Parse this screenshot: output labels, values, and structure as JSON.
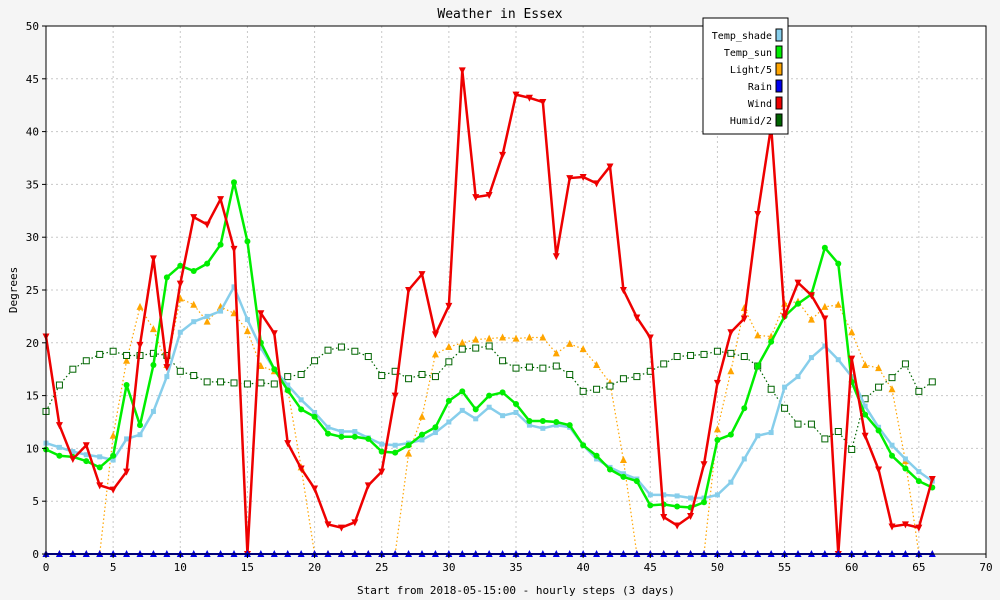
{
  "chart_data": {
    "type": "line",
    "title": "Weather in Essex",
    "xlabel": "Start from 2018-05-15:00 - hourly steps (3 days)",
    "ylabel": "Degrees",
    "xlim": [
      0,
      70
    ],
    "ylim": [
      0,
      50
    ],
    "xticks": [
      0,
      5,
      10,
      15,
      20,
      25,
      30,
      35,
      40,
      45,
      50,
      55,
      60,
      65,
      70
    ],
    "yticks": [
      0,
      5,
      10,
      15,
      20,
      25,
      30,
      35,
      40,
      45,
      50
    ],
    "grid": true,
    "legend_position": "top-right",
    "series": [
      {
        "name": "Temp_shade",
        "color": "#87ceeb",
        "marker": "square",
        "line": "solid",
        "values": [
          10.5,
          10.1,
          9.7,
          9.4,
          9.2,
          8.9,
          10.9,
          11.3,
          13.5,
          16.8,
          21.0,
          22.0,
          22.5,
          23.0,
          25.3,
          22.2,
          19.5,
          17.5,
          16.0,
          14.6,
          13.4,
          12.0,
          11.6,
          11.6,
          11.0,
          10.4,
          10.3,
          10.5,
          10.8,
          11.5,
          12.5,
          13.6,
          12.8,
          13.9,
          13.1,
          13.4,
          12.2,
          11.9,
          12.2,
          12.0,
          10.3,
          9.0,
          8.2,
          7.6,
          7.1,
          5.6,
          5.6,
          5.5,
          5.3,
          5.3,
          5.6,
          6.8,
          9.0,
          11.2,
          11.5,
          15.8,
          16.8,
          18.6,
          19.7,
          18.4,
          16.8,
          14.0,
          12.0,
          10.3,
          9.0,
          7.8,
          6.9
        ]
      },
      {
        "name": "Temp_sun",
        "color": "#00ee00",
        "marker": "circle",
        "line": "solid",
        "values": [
          9.9,
          9.3,
          9.2,
          8.8,
          8.2,
          9.3,
          16.0,
          12.2,
          17.9,
          26.2,
          27.3,
          26.8,
          27.5,
          29.3,
          35.2,
          29.6,
          20.0,
          17.5,
          15.5,
          13.7,
          13.0,
          11.4,
          11.1,
          11.1,
          10.9,
          9.7,
          9.6,
          10.3,
          11.3,
          12.0,
          14.5,
          15.4,
          13.7,
          15.0,
          15.3,
          14.2,
          12.6,
          12.6,
          12.5,
          12.2,
          10.3,
          9.3,
          8.0,
          7.3,
          6.9,
          4.6,
          4.7,
          4.5,
          4.4,
          4.9,
          10.8,
          11.3,
          13.8,
          17.8,
          20.1,
          22.5,
          23.7,
          24.6,
          29.0,
          27.5,
          16.3,
          13.2,
          11.7,
          9.3,
          8.1,
          6.9,
          6.3
        ]
      },
      {
        "name": "Light/5",
        "color": "#ffa500",
        "marker": "triangle-up",
        "line": "dotted",
        "values": [
          0,
          0,
          0,
          0,
          0,
          11.2,
          18.3,
          23.4,
          21.3,
          17.9,
          24.2,
          23.6,
          22.0,
          23.4,
          22.8,
          21.1,
          17.8,
          17.3,
          15.6,
          8.2,
          0,
          0,
          0,
          0,
          0,
          0,
          0,
          9.5,
          13.0,
          18.9,
          19.6,
          20.0,
          20.3,
          20.4,
          20.5,
          20.4,
          20.5,
          20.5,
          19.0,
          19.9,
          19.4,
          17.9,
          16.2,
          8.9,
          0,
          0,
          0,
          0,
          0,
          0,
          11.8,
          17.3,
          23.3,
          20.7,
          20.6,
          23.7,
          23.9,
          22.2,
          23.4,
          23.6,
          21.0,
          17.9,
          17.6,
          15.6,
          8.8,
          0,
          0
        ]
      },
      {
        "name": "Rain",
        "color": "#0000ee",
        "marker": "triangle-up",
        "line": "solid",
        "values": [
          0,
          0,
          0,
          0,
          0,
          0,
          0,
          0,
          0,
          0,
          0,
          0,
          0,
          0,
          0,
          0,
          0,
          0,
          0,
          0,
          0,
          0,
          0,
          0,
          0,
          0,
          0,
          0,
          0,
          0,
          0,
          0,
          0,
          0,
          0,
          0,
          0,
          0,
          0,
          0,
          0,
          0,
          0,
          0,
          0,
          0,
          0,
          0,
          0,
          0,
          0,
          0,
          0,
          0,
          0,
          0,
          0,
          0,
          0,
          0,
          0,
          0,
          0,
          0,
          0,
          0,
          0
        ]
      },
      {
        "name": "Wind",
        "color": "#ee0000",
        "marker": "triangle-down",
        "line": "solid",
        "values": [
          20.6,
          12.2,
          9.0,
          10.3,
          6.5,
          6.1,
          7.8,
          19.8,
          28.0,
          17.7,
          25.6,
          31.9,
          31.2,
          33.6,
          28.9,
          0,
          22.8,
          20.9,
          10.5,
          8.1,
          6.2,
          2.8,
          2.5,
          3.0,
          6.5,
          7.8,
          15.0,
          25.0,
          26.5,
          20.8,
          23.5,
          45.8,
          33.8,
          34.0,
          37.8,
          43.5,
          43.2,
          42.8,
          28.2,
          35.6,
          35.7,
          35.1,
          36.7,
          25.0,
          22.4,
          20.5,
          3.5,
          2.7,
          3.6,
          8.5,
          16.2,
          21.0,
          22.3,
          32.2,
          40.5,
          22.5,
          25.7,
          24.5,
          22.3,
          0,
          18.5,
          11.2,
          8.0,
          2.6,
          2.8,
          2.5,
          7.1
        ]
      },
      {
        "name": "Humid/2",
        "color": "#006400",
        "marker": "square-open",
        "line": "dotted",
        "values": [
          13.5,
          16.0,
          17.5,
          18.3,
          18.9,
          19.2,
          18.8,
          18.8,
          19.0,
          18.8,
          17.3,
          16.9,
          16.3,
          16.3,
          16.2,
          16.1,
          16.2,
          16.1,
          16.8,
          17.0,
          18.3,
          19.3,
          19.6,
          19.2,
          18.7,
          16.9,
          17.3,
          16.6,
          17.0,
          16.8,
          18.2,
          19.4,
          19.5,
          19.7,
          18.3,
          17.6,
          17.7,
          17.6,
          17.8,
          17.0,
          15.4,
          15.6,
          15.9,
          16.6,
          16.8,
          17.3,
          18.0,
          18.7,
          18.8,
          18.9,
          19.2,
          19.0,
          18.7,
          17.8,
          15.6,
          13.8,
          12.3,
          12.3,
          10.9,
          11.6,
          9.9,
          14.7,
          15.8,
          16.7,
          18.0,
          15.4,
          16.3
        ]
      }
    ]
  }
}
